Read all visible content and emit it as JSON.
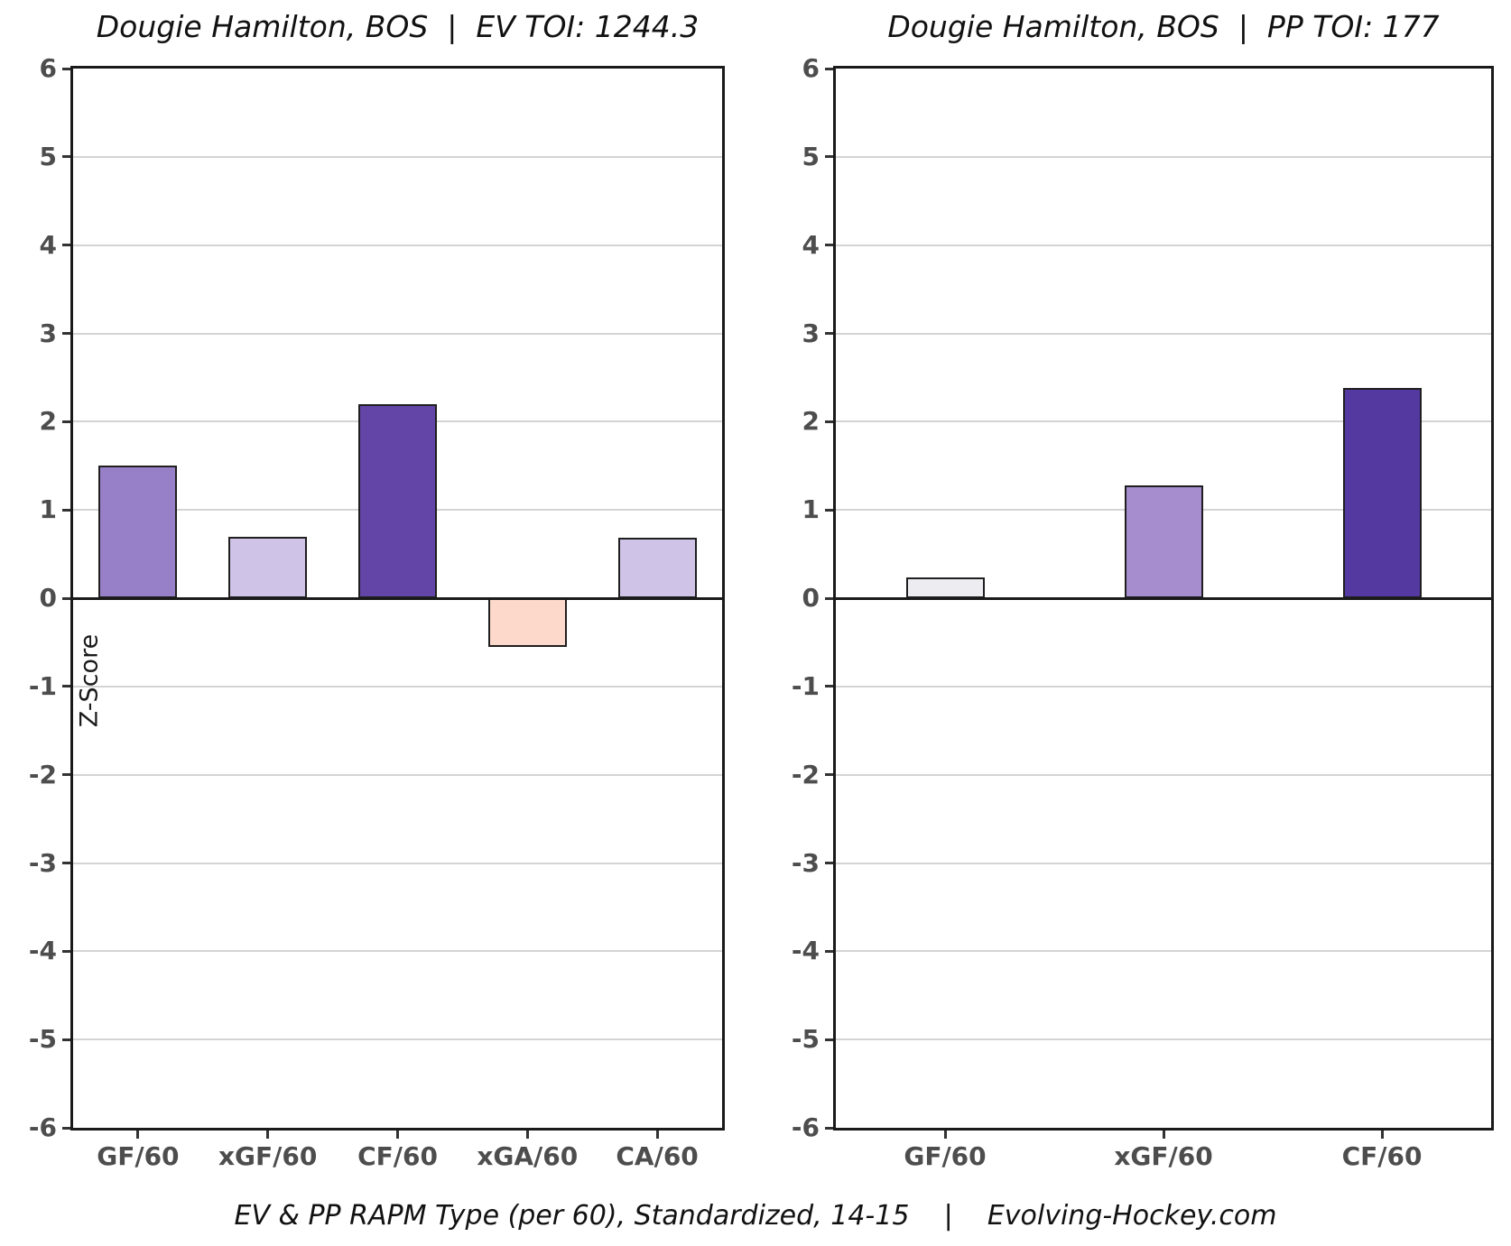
{
  "page": {
    "ylabel": "Z-Score",
    "footer": "EV & PP RAPM Type (per 60), Standardized, 14-15    |    Evolving-Hockey.com"
  },
  "chart_data": [
    {
      "type": "bar",
      "title": "Dougie Hamilton, BOS  |  EV TOI: 1244.3",
      "categories": [
        "GF/60",
        "xGF/60",
        "CF/60",
        "xGA/60",
        "CA/60"
      ],
      "values": [
        1.5,
        0.7,
        2.2,
        -0.55,
        0.68
      ],
      "bar_colors": [
        "#9880c8",
        "#cfc3e8",
        "#6245a6",
        "#fdd9cb",
        "#cfc3e8"
      ],
      "ylabel": "Z-Score",
      "ylim": [
        -6,
        6
      ],
      "yticks": [
        6,
        5,
        4,
        3,
        2,
        1,
        0,
        -1,
        -2,
        -3,
        -4,
        -5,
        -6
      ],
      "grid": true,
      "legend": "none"
    },
    {
      "type": "bar",
      "title": "Dougie Hamilton, BOS  |  PP TOI: 177",
      "categories": [
        "GF/60",
        "xGF/60",
        "CF/60"
      ],
      "values": [
        0.23,
        1.28,
        2.38
      ],
      "bar_colors": [
        "#ededf1",
        "#a58dce",
        "#5339a0"
      ],
      "ylabel": "",
      "ylim": [
        -6,
        6
      ],
      "yticks": [
        6,
        5,
        4,
        3,
        2,
        1,
        0,
        -1,
        -2,
        -3,
        -4,
        -5,
        -6
      ],
      "grid": true,
      "legend": "none"
    }
  ]
}
